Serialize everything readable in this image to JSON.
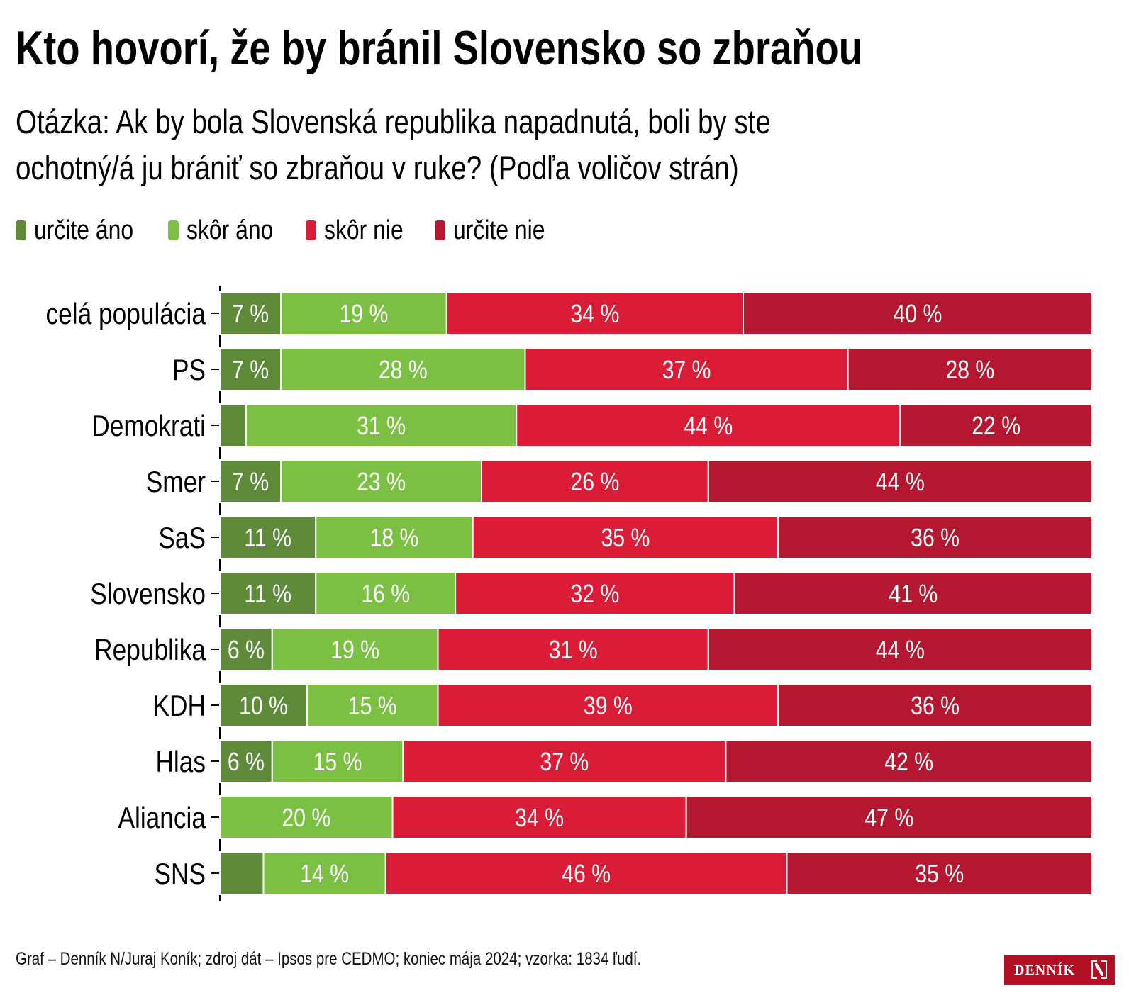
{
  "title": "Kto hovorí, že by bránil Slovensko so zbraňou",
  "subtitle": {
    "line1": "Otázka: Ak by bola Slovenská republika napadnutá, boli by ste",
    "line2": "ochotný/á ju brániť so zbraňou v ruke? (Podľa voličov strán)"
  },
  "footer": "Graf – Denník N/Juraj Koník; zdroj dát – Ipsos pre CEDMO; koniec mája 2024; vzorka: 1834 ľudí.",
  "logo": {
    "text": "DENNÍK",
    "mark": "N"
  },
  "chart_data": {
    "type": "bar",
    "orientation": "horizontal",
    "stacked": true,
    "normalized": true,
    "categories": [
      "celá populácia",
      "PS",
      "Demokrati",
      "Smer",
      "SaS",
      "Slovensko",
      "Republika",
      "KDH",
      "Hlas",
      "Aliancia",
      "SNS"
    ],
    "series": [
      {
        "name": "určite áno",
        "color": "#5e8a39",
        "values": [
          7,
          7,
          3,
          7,
          11,
          11,
          6,
          10,
          6,
          0,
          5
        ],
        "labels": [
          "7 %",
          "7 %",
          "",
          "7 %",
          "11 %",
          "11 %",
          "6 %",
          "10 %",
          "6 %",
          "",
          ""
        ]
      },
      {
        "name": "skôr áno",
        "color": "#7bc043",
        "values": [
          19,
          28,
          31,
          23,
          18,
          16,
          19,
          15,
          15,
          20,
          14
        ],
        "labels": [
          "19 %",
          "28 %",
          "31 %",
          "23 %",
          "18 %",
          "16 %",
          "19 %",
          "15 %",
          "15 %",
          "20 %",
          "14 %"
        ]
      },
      {
        "name": "skôr nie",
        "color": "#db1c37",
        "values": [
          34,
          37,
          44,
          26,
          35,
          32,
          31,
          39,
          37,
          34,
          46
        ],
        "labels": [
          "34 %",
          "37 %",
          "44 %",
          "26 %",
          "35 %",
          "32 %",
          "31 %",
          "39 %",
          "37 %",
          "34 %",
          "46 %"
        ]
      },
      {
        "name": "určite nie",
        "color": "#b51731",
        "values": [
          40,
          28,
          22,
          44,
          36,
          41,
          44,
          36,
          42,
          47,
          35
        ],
        "labels": [
          "40 %",
          "28 %",
          "22 %",
          "44 %",
          "36 %",
          "41 %",
          "44 %",
          "36 %",
          "42 %",
          "47 %",
          "35 %"
        ]
      }
    ],
    "xlabel": "",
    "ylabel": "",
    "legend_position": "top-left",
    "grid": false
  }
}
